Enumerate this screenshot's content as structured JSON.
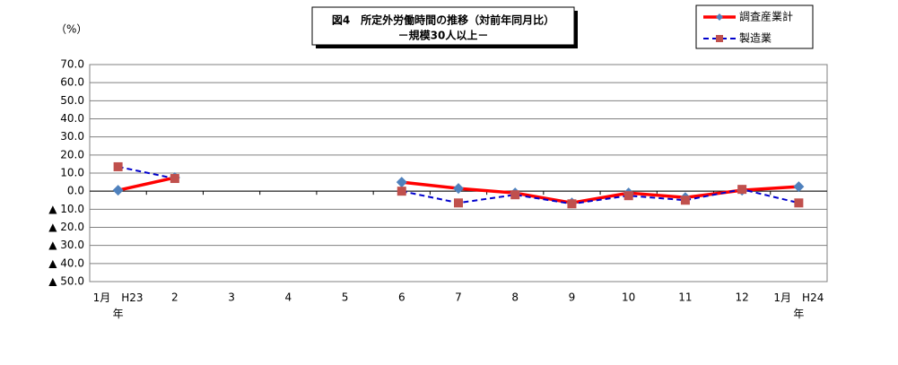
{
  "chart_data": {
    "type": "line",
    "title": "図4　所定外労働時間の推移（対前年同月比）",
    "subtitle": "－規模30人以上－",
    "y_label": "（%）",
    "categories": [
      "1月　H23\n年",
      "2",
      "3",
      "4",
      "5",
      "6",
      "7",
      "8",
      "9",
      "10",
      "11",
      "12",
      "1月　H24\n年"
    ],
    "series": [
      {
        "name": "調査産業計",
        "color": "#ff0000",
        "marker_color": "#4f81bd",
        "marker": "diamond",
        "dash": false,
        "values": [
          0.5,
          7.5,
          null,
          null,
          null,
          5.0,
          1.5,
          -1.0,
          -6.5,
          -1.0,
          -3.5,
          0.5,
          2.5
        ]
      },
      {
        "name": "製造業",
        "color": "#0000cc",
        "marker_color": "#c0504d",
        "marker": "square",
        "dash": true,
        "values": [
          13.5,
          7.0,
          null,
          null,
          null,
          0.0,
          -6.5,
          -2.0,
          -7.0,
          -2.5,
          -5.0,
          1.0,
          -6.5
        ]
      }
    ],
    "ylim": [
      -50,
      70
    ],
    "yticks": [
      {
        "value": 70,
        "label": "70.0"
      },
      {
        "value": 60,
        "label": "60.0"
      },
      {
        "value": 50,
        "label": "50.0"
      },
      {
        "value": 40,
        "label": "40.0"
      },
      {
        "value": 30,
        "label": "30.0"
      },
      {
        "value": 20,
        "label": "20.0"
      },
      {
        "value": 10,
        "label": "10.0"
      },
      {
        "value": 0,
        "label": "0.0"
      },
      {
        "value": -10,
        "label": "▲ 10.0"
      },
      {
        "value": -20,
        "label": "▲ 20.0"
      },
      {
        "value": -30,
        "label": "▲ 30.0"
      },
      {
        "value": -40,
        "label": "▲ 40.0"
      },
      {
        "value": -50,
        "label": "▲ 50.0"
      }
    ],
    "grid": true
  }
}
